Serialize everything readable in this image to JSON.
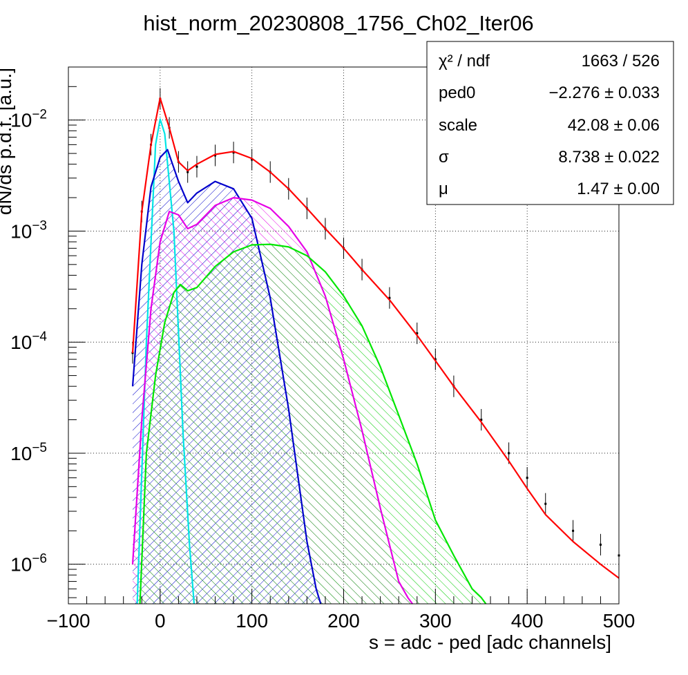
{
  "chart_data": {
    "type": "line",
    "title": "hist_norm_20230808_1756_Ch02_Iter06",
    "xlabel": "s = adc - ped [adc channels]",
    "ylabel": "dN/ds p.d.f. [a.u.]",
    "xlim": [
      -100,
      500
    ],
    "ylim": [
      4.4e-07,
      0.03
    ],
    "y_scale": "log",
    "grid": true,
    "x_ticks": [
      -100,
      0,
      100,
      200,
      300,
      400,
      500
    ],
    "x_tick_labels": [
      "−100",
      "0",
      "100",
      "200",
      "300",
      "400",
      "500"
    ],
    "y_ticks": [
      {
        "value": 0.01,
        "base": "10",
        "exp": "−2"
      },
      {
        "value": 0.001,
        "base": "10",
        "exp": "−3"
      },
      {
        "value": 0.0001,
        "base": "10",
        "exp": "−4"
      },
      {
        "value": 1e-05,
        "base": "10",
        "exp": "−5"
      },
      {
        "value": 1e-06,
        "base": "10",
        "exp": "−6"
      }
    ],
    "stats_box": {
      "placement": "top-right",
      "rows": [
        {
          "label": "χ² / ndf",
          "value": "1663 / 526"
        },
        {
          "label": "ped0",
          "value": "−2.276 ± 0.033"
        },
        {
          "label": "scale",
          "value": "42.08 ± 0.06"
        },
        {
          "label": "σ",
          "value": "8.738 ± 0.022"
        },
        {
          "label": "μ",
          "value": "1.47 ± 0.00"
        }
      ]
    },
    "series": [
      {
        "color": "#000000",
        "style": "data-errorbars",
        "x": [
          -30,
          -20,
          -10,
          0,
          10,
          20,
          30,
          40,
          60,
          80,
          100,
          120,
          140,
          160,
          180,
          200,
          220,
          250,
          280,
          300,
          320,
          350,
          380,
          400,
          420,
          450,
          480,
          500
        ],
        "values": [
          8e-05,
          0.0015,
          0.006,
          0.0155,
          0.0085,
          0.0042,
          0.0034,
          0.0038,
          0.0048,
          0.0051,
          0.0044,
          0.0034,
          0.0024,
          0.0016,
          0.00105,
          0.0007,
          0.00045,
          0.00025,
          0.00012,
          7e-05,
          4e-05,
          2e-05,
          1e-05,
          6e-06,
          3.5e-06,
          2e-06,
          1.5e-06,
          1.2e-06
        ]
      },
      {
        "color": "#ff0000",
        "style": "line",
        "x": [
          -30,
          -20,
          -10,
          0,
          10,
          20,
          30,
          40,
          60,
          80,
          100,
          120,
          140,
          160,
          180,
          200,
          220,
          250,
          280,
          300,
          320,
          350,
          380,
          400,
          420,
          450,
          480,
          500
        ],
        "values": [
          8e-05,
          0.0015,
          0.006,
          0.0158,
          0.0085,
          0.0042,
          0.0035,
          0.004,
          0.0049,
          0.0052,
          0.0045,
          0.0034,
          0.0024,
          0.0016,
          0.00105,
          0.0007,
          0.00045,
          0.00024,
          0.000115,
          6.8e-05,
          4e-05,
          1.9e-05,
          8.5e-06,
          4.8e-06,
          2.8e-06,
          1.6e-06,
          1e-06,
          7.5e-07
        ]
      },
      {
        "color": "#00e5e5",
        "style": "line",
        "x": [
          -25,
          -15,
          -5,
          0,
          5,
          15,
          25,
          32,
          37
        ],
        "values": [
          4.4e-07,
          0.0001,
          0.006,
          0.0102,
          0.0075,
          0.001,
          1.5e-05,
          1.5e-06,
          4.4e-07
        ]
      },
      {
        "color": "#0000cc",
        "style": "line-hatched",
        "x": [
          -30,
          -20,
          -10,
          0,
          8,
          20,
          30,
          40,
          60,
          80,
          100,
          120,
          140,
          160,
          170,
          175
        ],
        "values": [
          4e-05,
          0.0005,
          0.0025,
          0.0046,
          0.0054,
          0.0028,
          0.0018,
          0.0022,
          0.0028,
          0.0024,
          0.0013,
          0.00025,
          2.5e-05,
          1.6e-06,
          6e-07,
          4.4e-07
        ]
      },
      {
        "color": "#e600e6",
        "style": "line-hatched",
        "x": [
          -30,
          -20,
          -10,
          0,
          10,
          20,
          30,
          40,
          60,
          80,
          100,
          120,
          140,
          160,
          180,
          200,
          220,
          240,
          260,
          270,
          275
        ],
        "values": [
          1e-06,
          2e-05,
          0.0002,
          0.0008,
          0.0015,
          0.0014,
          0.00105,
          0.00115,
          0.0017,
          0.002,
          0.0019,
          0.0016,
          0.0011,
          0.00065,
          0.00026,
          7e-05,
          1.6e-05,
          3.2e-06,
          7e-07,
          5e-07,
          4.4e-07
        ]
      },
      {
        "color": "#00e600",
        "style": "line-hatched",
        "x": [
          -22,
          -15,
          -5,
          5,
          15,
          22,
          30,
          40,
          60,
          80,
          100,
          120,
          140,
          160,
          180,
          200,
          220,
          240,
          260,
          280,
          300,
          320,
          340,
          350,
          355
        ],
        "values": [
          4.4e-07,
          1e-05,
          5e-05,
          0.00015,
          0.00028,
          0.00033,
          0.00029,
          0.00031,
          0.00048,
          0.00065,
          0.00075,
          0.00076,
          0.00072,
          0.0006,
          0.00043,
          0.00026,
          0.00014,
          6e-05,
          2.2e-05,
          8e-06,
          2.5e-06,
          1.2e-06,
          6e-07,
          5e-07,
          4.4e-07
        ]
      }
    ]
  }
}
